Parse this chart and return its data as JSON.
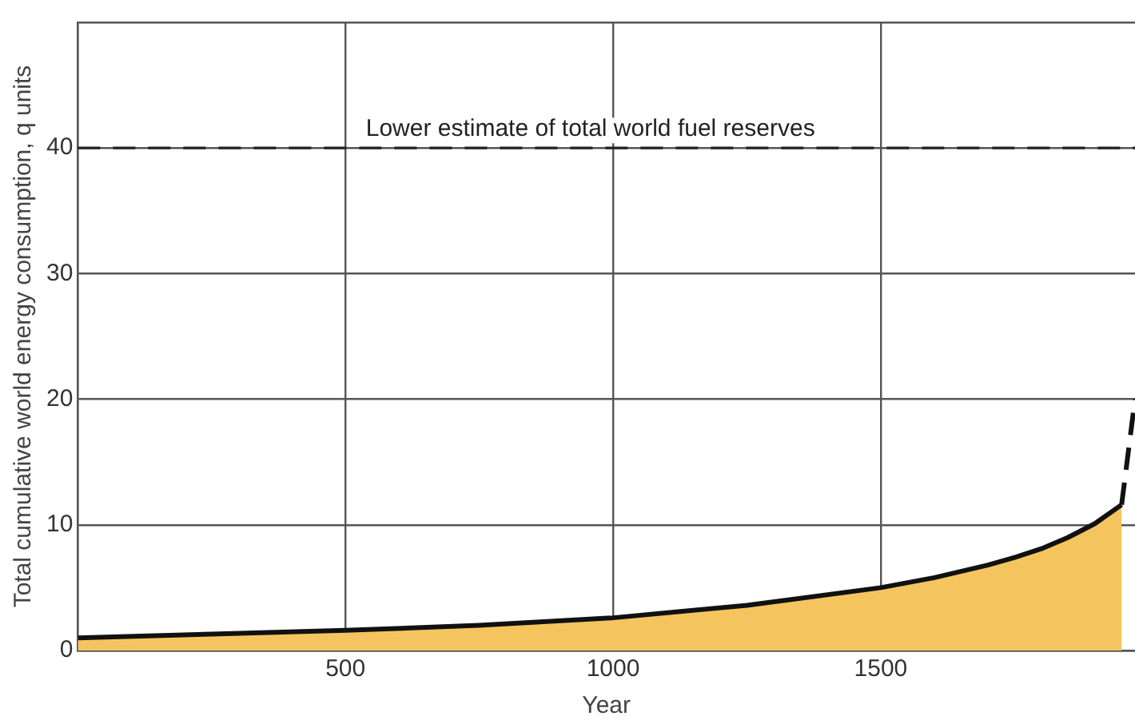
{
  "chart_data": {
    "type": "area",
    "xlabel": "Year",
    "ylabel": "Total cumulative world energy consumption, q units",
    "xlim": [
      0,
      1975
    ],
    "ylim": [
      0,
      50
    ],
    "xticks": [
      {
        "value": 0,
        "label": null
      },
      500,
      1000,
      1500
    ],
    "yticks": [
      0,
      10,
      20,
      30,
      40,
      {
        "value": 50,
        "label": null
      }
    ],
    "grid": true,
    "legend": false,
    "series": [
      {
        "color": "#f4c55e",
        "x": [
          0,
          250,
          500,
          750,
          1000,
          1250,
          1500,
          1600,
          1700,
          1750,
          1800,
          1850,
          1900,
          1950
        ],
        "values": [
          1.0,
          1.3,
          1.6,
          2.0,
          2.6,
          3.6,
          5.0,
          5.8,
          6.8,
          7.4,
          8.1,
          9.0,
          10.1,
          11.6
        ]
      },
      {
        "type": "line",
        "color": "#111111",
        "line_style": "dashed",
        "x": [
          1950,
          1975
        ],
        "values": [
          11.6,
          20
        ]
      }
    ],
    "ref_lines": [
      {
        "axis": "y",
        "value": 40,
        "label": "Lower estimate of total world fuel reserves",
        "color": "#222222",
        "line_style": "dashed"
      }
    ]
  }
}
